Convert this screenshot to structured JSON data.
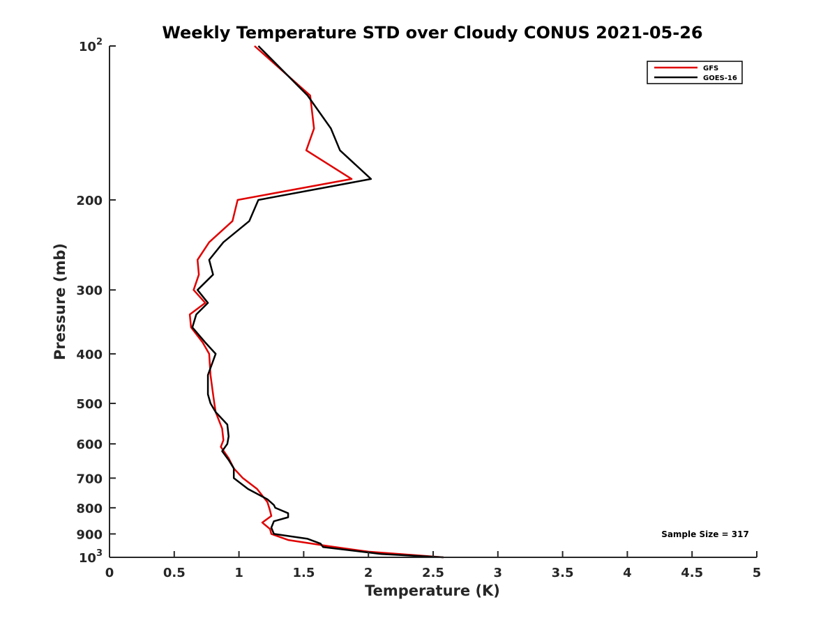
{
  "chart_data": {
    "type": "line",
    "title": "Weekly Temperature STD over Cloudy CONUS 2021-05-26",
    "xlabel": "Temperature (K)",
    "ylabel": "Pressure (mb)",
    "xlim": [
      0,
      5
    ],
    "ylim": [
      100,
      1000
    ],
    "y_scale": "log",
    "y_reversed": true,
    "grid": false,
    "legend_position": "top-right",
    "x_ticks": [
      0,
      0.5,
      1,
      1.5,
      2,
      2.5,
      3,
      3.5,
      4,
      4.5,
      5
    ],
    "x_tick_labels": [
      "0",
      "0.5",
      "1",
      "1.5",
      "2",
      "2.5",
      "3",
      "3.5",
      "4",
      "4.5",
      "5"
    ],
    "y_ticks": [
      {
        "value": 100,
        "base": "10",
        "exp": "2"
      },
      {
        "value": 200,
        "label": "200"
      },
      {
        "value": 300,
        "label": "300"
      },
      {
        "value": 400,
        "label": "400"
      },
      {
        "value": 500,
        "label": "500"
      },
      {
        "value": 600,
        "label": "600"
      },
      {
        "value": 700,
        "label": "700"
      },
      {
        "value": 800,
        "label": "800"
      },
      {
        "value": 900,
        "label": "900"
      },
      {
        "value": 1000,
        "base": "10",
        "exp": "3"
      }
    ],
    "annotation": "Sample Size = 317",
    "series": [
      {
        "name": "GFS",
        "color": "#e00000",
        "points": [
          [
            1.12,
            100
          ],
          [
            1.55,
            125
          ],
          [
            1.58,
            145
          ],
          [
            1.52,
            160
          ],
          [
            1.87,
            182
          ],
          [
            0.99,
            200
          ],
          [
            0.95,
            220
          ],
          [
            0.77,
            242
          ],
          [
            0.68,
            262
          ],
          [
            0.69,
            280
          ],
          [
            0.65,
            300
          ],
          [
            0.74,
            318
          ],
          [
            0.62,
            335
          ],
          [
            0.63,
            355
          ],
          [
            0.72,
            380
          ],
          [
            0.77,
            400
          ],
          [
            0.78,
            440
          ],
          [
            0.8,
            480
          ],
          [
            0.81,
            500
          ],
          [
            0.82,
            520
          ],
          [
            0.87,
            560
          ],
          [
            0.88,
            590
          ],
          [
            0.86,
            608
          ],
          [
            0.92,
            640
          ],
          [
            0.96,
            670
          ],
          [
            1.03,
            700
          ],
          [
            1.14,
            735
          ],
          [
            1.22,
            780
          ],
          [
            1.24,
            810
          ],
          [
            1.25,
            830
          ],
          [
            1.18,
            855
          ],
          [
            1.24,
            880
          ],
          [
            1.25,
            900
          ],
          [
            1.38,
            925
          ],
          [
            1.68,
            950
          ],
          [
            2.0,
            975
          ],
          [
            2.58,
            1000
          ]
        ]
      },
      {
        "name": "GOES-16",
        "color": "#000000",
        "points": [
          [
            1.15,
            100
          ],
          [
            1.53,
            125
          ],
          [
            1.71,
            145
          ],
          [
            1.78,
            160
          ],
          [
            2.02,
            182
          ],
          [
            1.15,
            200
          ],
          [
            1.08,
            220
          ],
          [
            0.88,
            242
          ],
          [
            0.77,
            262
          ],
          [
            0.8,
            280
          ],
          [
            0.68,
            300
          ],
          [
            0.76,
            318
          ],
          [
            0.67,
            335
          ],
          [
            0.64,
            355
          ],
          [
            0.74,
            380
          ],
          [
            0.82,
            400
          ],
          [
            0.76,
            440
          ],
          [
            0.76,
            480
          ],
          [
            0.78,
            500
          ],
          [
            0.82,
            520
          ],
          [
            0.91,
            550
          ],
          [
            0.92,
            580
          ],
          [
            0.91,
            600
          ],
          [
            0.87,
            620
          ],
          [
            0.92,
            645
          ],
          [
            0.96,
            670
          ],
          [
            0.96,
            700
          ],
          [
            1.07,
            735
          ],
          [
            1.22,
            770
          ],
          [
            1.27,
            790
          ],
          [
            1.28,
            800
          ],
          [
            1.38,
            820
          ],
          [
            1.38,
            835
          ],
          [
            1.27,
            850
          ],
          [
            1.25,
            875
          ],
          [
            1.27,
            900
          ],
          [
            1.53,
            920
          ],
          [
            1.63,
            940
          ],
          [
            1.65,
            955
          ],
          [
            2.1,
            985
          ],
          [
            2.58,
            1000
          ]
        ]
      }
    ]
  }
}
